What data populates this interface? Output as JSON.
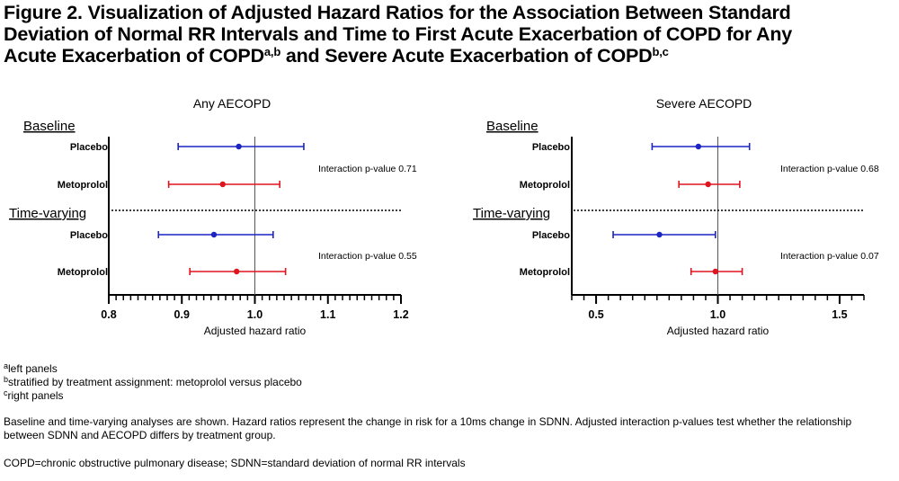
{
  "title": {
    "line1": "Figure 2. Visualization of Adjusted Hazard Ratios for the Association Between Standard",
    "line2": "Deviation of Normal RR Intervals and Time to First Acute Exacerbation of COPD for Any",
    "line3_a": "Acute Exacerbation of  COPD",
    "line3_sup1": "a,b",
    "line3_b": " and Severe Acute Exacerbation of COPD",
    "line3_sup2": "b,c"
  },
  "colors": {
    "placebo": "#1d24c4",
    "metoprolol": "#e0141e",
    "axis": "#000000",
    "reference_line": "#555555"
  },
  "chart_data": [
    {
      "type": "forest",
      "title": "Any AECOPD",
      "xlabel": "Adjusted hazard ratio",
      "xlim": [
        0.8,
        1.2
      ],
      "ticks": [
        0.8,
        0.9,
        1.0,
        1.1,
        1.2
      ],
      "tick_labels": [
        "0.8",
        "0.9",
        "1.0",
        "1.1",
        "1.2"
      ],
      "reference": 1.0,
      "groups": [
        {
          "name": "Baseline",
          "interaction": "Interaction p-value 0.71",
          "rows": [
            {
              "label": "Placebo",
              "hr": 0.978,
              "lo": 0.895,
              "hi": 1.067
            },
            {
              "label": "Metoprolol",
              "hr": 0.956,
              "lo": 0.882,
              "hi": 1.034
            }
          ]
        },
        {
          "name": "Time-varying",
          "interaction": "Interaction p-value 0.55",
          "rows": [
            {
              "label": "Placebo",
              "hr": 0.944,
              "lo": 0.868,
              "hi": 1.025
            },
            {
              "label": "Metoprolol",
              "hr": 0.975,
              "lo": 0.911,
              "hi": 1.042
            }
          ]
        }
      ]
    },
    {
      "type": "forest",
      "title": "Severe AECOPD",
      "xlabel": "Adjusted hazard ratio",
      "xlim": [
        0.4,
        1.6
      ],
      "ticks": [
        0.5,
        1.0,
        1.5
      ],
      "tick_labels": [
        "0.5",
        "1.0",
        "1.5"
      ],
      "reference": 1.0,
      "groups": [
        {
          "name": "Baseline",
          "interaction": "Interaction p-value 0.68",
          "rows": [
            {
              "label": "Placebo",
              "hr": 0.92,
              "lo": 0.73,
              "hi": 1.13
            },
            {
              "label": "Metoprolol",
              "hr": 0.96,
              "lo": 0.84,
              "hi": 1.09
            }
          ]
        },
        {
          "name": "Time-varying",
          "interaction": "Interaction p-value 0.07",
          "rows": [
            {
              "label": "Placebo",
              "hr": 0.76,
              "lo": 0.57,
              "hi": 0.99
            },
            {
              "label": "Metoprolol",
              "hr": 0.99,
              "lo": 0.89,
              "hi": 1.1
            }
          ]
        }
      ]
    }
  ],
  "notes": {
    "a_sup": "a",
    "a_text": "left panels",
    "b_sup": "b",
    "b_text": "stratified by treatment assignment: metoprolol versus placebo",
    "c_sup": "c",
    "c_text": "right panels",
    "description": "Baseline and time-varying analyses are shown. Hazard ratios represent the change in risk for a 10ms change in SDNN. Adjusted interaction p-values test whether the relationship between SDNN and AECOPD differs by treatment group.",
    "abbreviations": "COPD=chronic obstructive pulmonary disease; SDNN=standard deviation of normal RR intervals"
  }
}
